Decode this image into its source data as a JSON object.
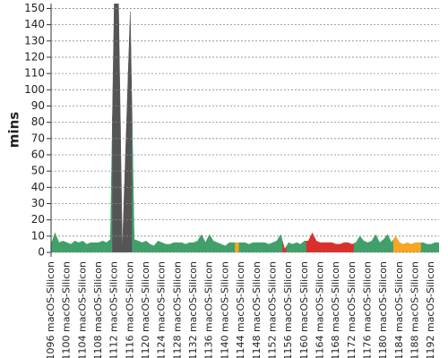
{
  "chart_data": {
    "type": "area",
    "y_label": "mins",
    "categories": [
      "#1096 macOS-Silicon",
      null,
      null,
      null,
      "#1100 macOS-Silicon",
      null,
      null,
      null,
      "#1104 macOS-Silicon",
      null,
      null,
      null,
      "#1108 macOS-Silicon",
      null,
      null,
      null,
      "#1112 macOS-Silicon",
      null,
      null,
      null,
      "#1116 macOS-Silicon",
      null,
      null,
      null,
      "#1120 macOS-Silicon",
      null,
      null,
      null,
      "#1124 macOS-Silicon",
      null,
      null,
      null,
      "#1128 macOS-Silicon",
      null,
      null,
      null,
      "#1132 macOS-Silicon",
      null,
      null,
      null,
      "#1136 macOS-Silicon",
      null,
      null,
      null,
      "#1140 macOS-Silicon",
      null,
      null,
      null,
      "#1144 macOS-Silicon",
      null,
      null,
      null,
      "#1148 macOS-Silicon",
      null,
      null,
      null,
      "#1152 macOS-Silicon",
      null,
      null,
      null,
      "#1156 macOS-Silicon",
      null,
      null,
      null,
      "#1160 macOS-Silicon",
      null,
      null,
      null,
      "#1164 macOS-Silicon",
      null,
      null,
      null,
      "#1168 macOS-Silicon",
      null,
      null,
      null,
      "#1172 macOS-Silicon",
      null,
      null,
      null,
      "#1176 macOS-Silicon",
      null,
      null,
      null,
      "#1180 macOS-Silicon",
      null,
      null,
      null,
      "#1184 macOS-Silicon",
      null,
      null,
      null,
      "#1188 macOS-Silicon",
      null,
      null,
      null,
      "#1192 macOS-Silicon",
      null,
      null
    ],
    "values": [
      5,
      12,
      6,
      7,
      6,
      5,
      7,
      6,
      7,
      5,
      6,
      6,
      6,
      7,
      6,
      8,
      160,
      160,
      1,
      75,
      148,
      8,
      7,
      6,
      7,
      5,
      4,
      7,
      6,
      5,
      5,
      6,
      6,
      6,
      5,
      6,
      6,
      7,
      11,
      6,
      11,
      7,
      6,
      5,
      4,
      6,
      6,
      6,
      6,
      6,
      5,
      6,
      6,
      6,
      6,
      5,
      6,
      7,
      11,
      2,
      6,
      5,
      6,
      5,
      7,
      7,
      12,
      7,
      6,
      6,
      6,
      6,
      5,
      5,
      6,
      6,
      5,
      6,
      10,
      7,
      6,
      7,
      11,
      6,
      8,
      11,
      6,
      10,
      6,
      5,
      6,
      5,
      6,
      6,
      6,
      5,
      5,
      6,
      6
    ],
    "colors": [
      "#41a06a",
      "#41a06a",
      "#41a06a",
      "#41a06a",
      "#41a06a",
      "#41a06a",
      "#41a06a",
      "#41a06a",
      "#41a06a",
      "#41a06a",
      "#41a06a",
      "#41a06a",
      "#41a06a",
      "#41a06a",
      "#41a06a",
      "#41a06a",
      "#555555",
      "#555555",
      "#555555",
      "#555555",
      "#555555",
      "#41a06a",
      "#41a06a",
      "#41a06a",
      "#41a06a",
      "#41a06a",
      "#41a06a",
      "#41a06a",
      "#41a06a",
      "#41a06a",
      "#41a06a",
      "#41a06a",
      "#41a06a",
      "#41a06a",
      "#41a06a",
      "#41a06a",
      "#41a06a",
      "#41a06a",
      "#41a06a",
      "#41a06a",
      "#41a06a",
      "#41a06a",
      "#41a06a",
      "#41a06a",
      "#41a06a",
      "#41a06a",
      "#41a06a",
      "#f6a623",
      "#41a06a",
      "#41a06a",
      "#41a06a",
      "#41a06a",
      "#41a06a",
      "#41a06a",
      "#41a06a",
      "#41a06a",
      "#41a06a",
      "#41a06a",
      "#41a06a",
      "#d9302c",
      "#41a06a",
      "#41a06a",
      "#41a06a",
      "#41a06a",
      "#41a06a",
      "#d9302c",
      "#d9302c",
      "#d9302c",
      "#d9302c",
      "#d9302c",
      "#d9302c",
      "#d9302c",
      "#d9302c",
      "#d9302c",
      "#d9302c",
      "#d9302c",
      "#d9302c",
      "#41a06a",
      "#41a06a",
      "#41a06a",
      "#41a06a",
      "#41a06a",
      "#41a06a",
      "#41a06a",
      "#41a06a",
      "#41a06a",
      "#41a06a",
      "#f6a623",
      "#f6a623",
      "#f6a623",
      "#f6a623",
      "#f6a623",
      "#f6a623",
      "#f6a623",
      "#41a06a",
      "#41a06a",
      "#41a06a",
      "#41a06a",
      "#41a06a"
    ],
    "ylim": [
      0,
      153
    ],
    "yticks": [
      0,
      10,
      20,
      30,
      40,
      50,
      60,
      70,
      80,
      90,
      100,
      110,
      120,
      130,
      140,
      150
    ],
    "grid": true
  }
}
